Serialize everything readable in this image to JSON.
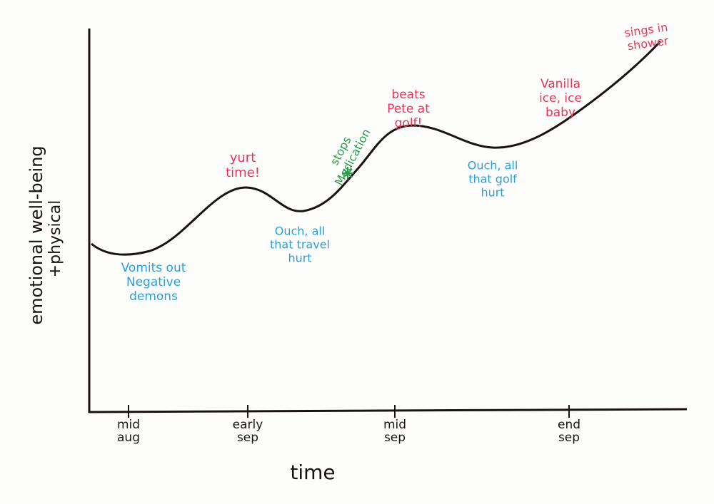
{
  "chart_data": {
    "type": "line",
    "y_label": [
      "emotional well-being",
      "+physical"
    ],
    "x_label": "time",
    "categories": [
      [
        "mid",
        "aug"
      ],
      [
        "early",
        "sep"
      ],
      [
        "mid",
        "sep"
      ],
      [
        "end",
        "sep"
      ]
    ],
    "line_color": "#1a1410",
    "annotations": [
      {
        "lines": [
          "Vomits out",
          "Negative",
          "demons"
        ],
        "color": "#2b9fd9"
      },
      {
        "lines": [
          "yurt",
          "time!"
        ],
        "color": "#e8335c"
      },
      {
        "lines": [
          "Ouch, all",
          "that travel",
          "hurt"
        ],
        "color": "#2b9fd9"
      },
      {
        "lines": [
          "stops",
          "Medication"
        ],
        "color": "#2c9e4b"
      },
      {
        "lines": [
          "beats",
          "Pete at",
          "golf!"
        ],
        "color": "#e8335c"
      },
      {
        "lines": [
          "Ouch, all",
          "that golf",
          "hurt"
        ],
        "color": "#2b9fd9"
      },
      {
        "lines": [
          "Vanilla",
          "ice, ice",
          "baby"
        ],
        "color": "#e8335c"
      },
      {
        "lines": [
          "sings in",
          "shower"
        ],
        "color": "#e8335c"
      }
    ]
  }
}
